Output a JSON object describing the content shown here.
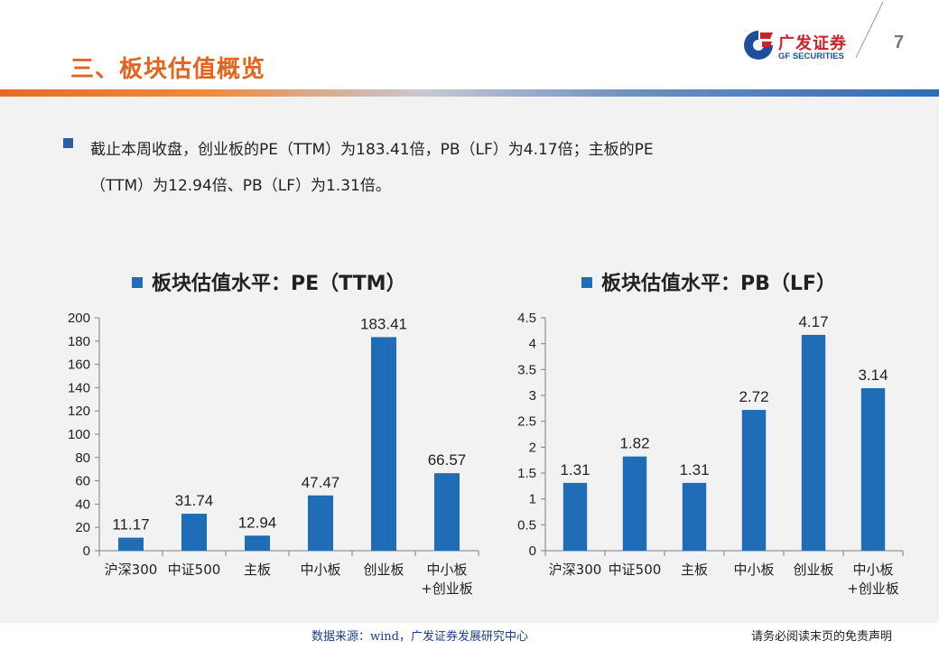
{
  "header": {
    "title": "三、板块估值概览",
    "logo_cn": "广发证券",
    "logo_en": "GF SECURITIES",
    "page_number": "7"
  },
  "bullet": {
    "line1": "截止本周收盘，创业板的PE（TTM）为183.41倍，PB（LF）为4.17倍；主板的PE",
    "line2": "（TTM）为12.94倍、PB（LF）为1.31倍。"
  },
  "footer": {
    "source": "数据来源：wind，广发证券发展研究中心",
    "disclaimer": "请务必阅读末页的免责声明"
  },
  "colors": {
    "bar": "#1f6db6",
    "accent": "#e2641e",
    "brand_red": "#c8232b",
    "brand_blue": "#1e4e9a"
  },
  "icons": [
    "gf-securities-logo-icon",
    "bullet-square-icon",
    "legend-square-icon"
  ],
  "chart_data": [
    {
      "type": "bar",
      "title": "板块估值水平：PE（TTM）",
      "categories": [
        [
          "沪深300"
        ],
        [
          "中证500"
        ],
        [
          "主板"
        ],
        [
          "中小板"
        ],
        [
          "创业板"
        ],
        [
          "中小板",
          "+创业板"
        ]
      ],
      "values": [
        11.17,
        31.74,
        12.94,
        47.47,
        183.41,
        66.57
      ],
      "labels": [
        "11.17",
        "31.74",
        "12.94",
        "47.47",
        "183.41",
        "66.57"
      ],
      "ylim": [
        0,
        200
      ],
      "yticks": [
        "0",
        "20",
        "40",
        "60",
        "80",
        "100",
        "120",
        "140",
        "160",
        "180",
        "200"
      ],
      "yticks_values": [
        0,
        20,
        40,
        60,
        80,
        100,
        120,
        140,
        160,
        180,
        200
      ],
      "legend_placement": "top",
      "grid": false
    },
    {
      "type": "bar",
      "title": "板块估值水平：PB（LF）",
      "categories": [
        [
          "沪深300"
        ],
        [
          "中证500"
        ],
        [
          "主板"
        ],
        [
          "中小板"
        ],
        [
          "创业板"
        ],
        [
          "中小板",
          "+创业板"
        ]
      ],
      "values": [
        1.31,
        1.82,
        1.31,
        2.72,
        4.17,
        3.14
      ],
      "labels": [
        "1.31",
        "1.82",
        "1.31",
        "2.72",
        "4.17",
        "3.14"
      ],
      "ylim": [
        0,
        4.5
      ],
      "yticks": [
        "0",
        "0.5",
        "1",
        "1.5",
        "2",
        "2.5",
        "3",
        "3.5",
        "4",
        "4.5"
      ],
      "yticks_values": [
        0,
        0.5,
        1,
        1.5,
        2,
        2.5,
        3,
        3.5,
        4,
        4.5
      ],
      "legend_placement": "top",
      "grid": false
    }
  ]
}
